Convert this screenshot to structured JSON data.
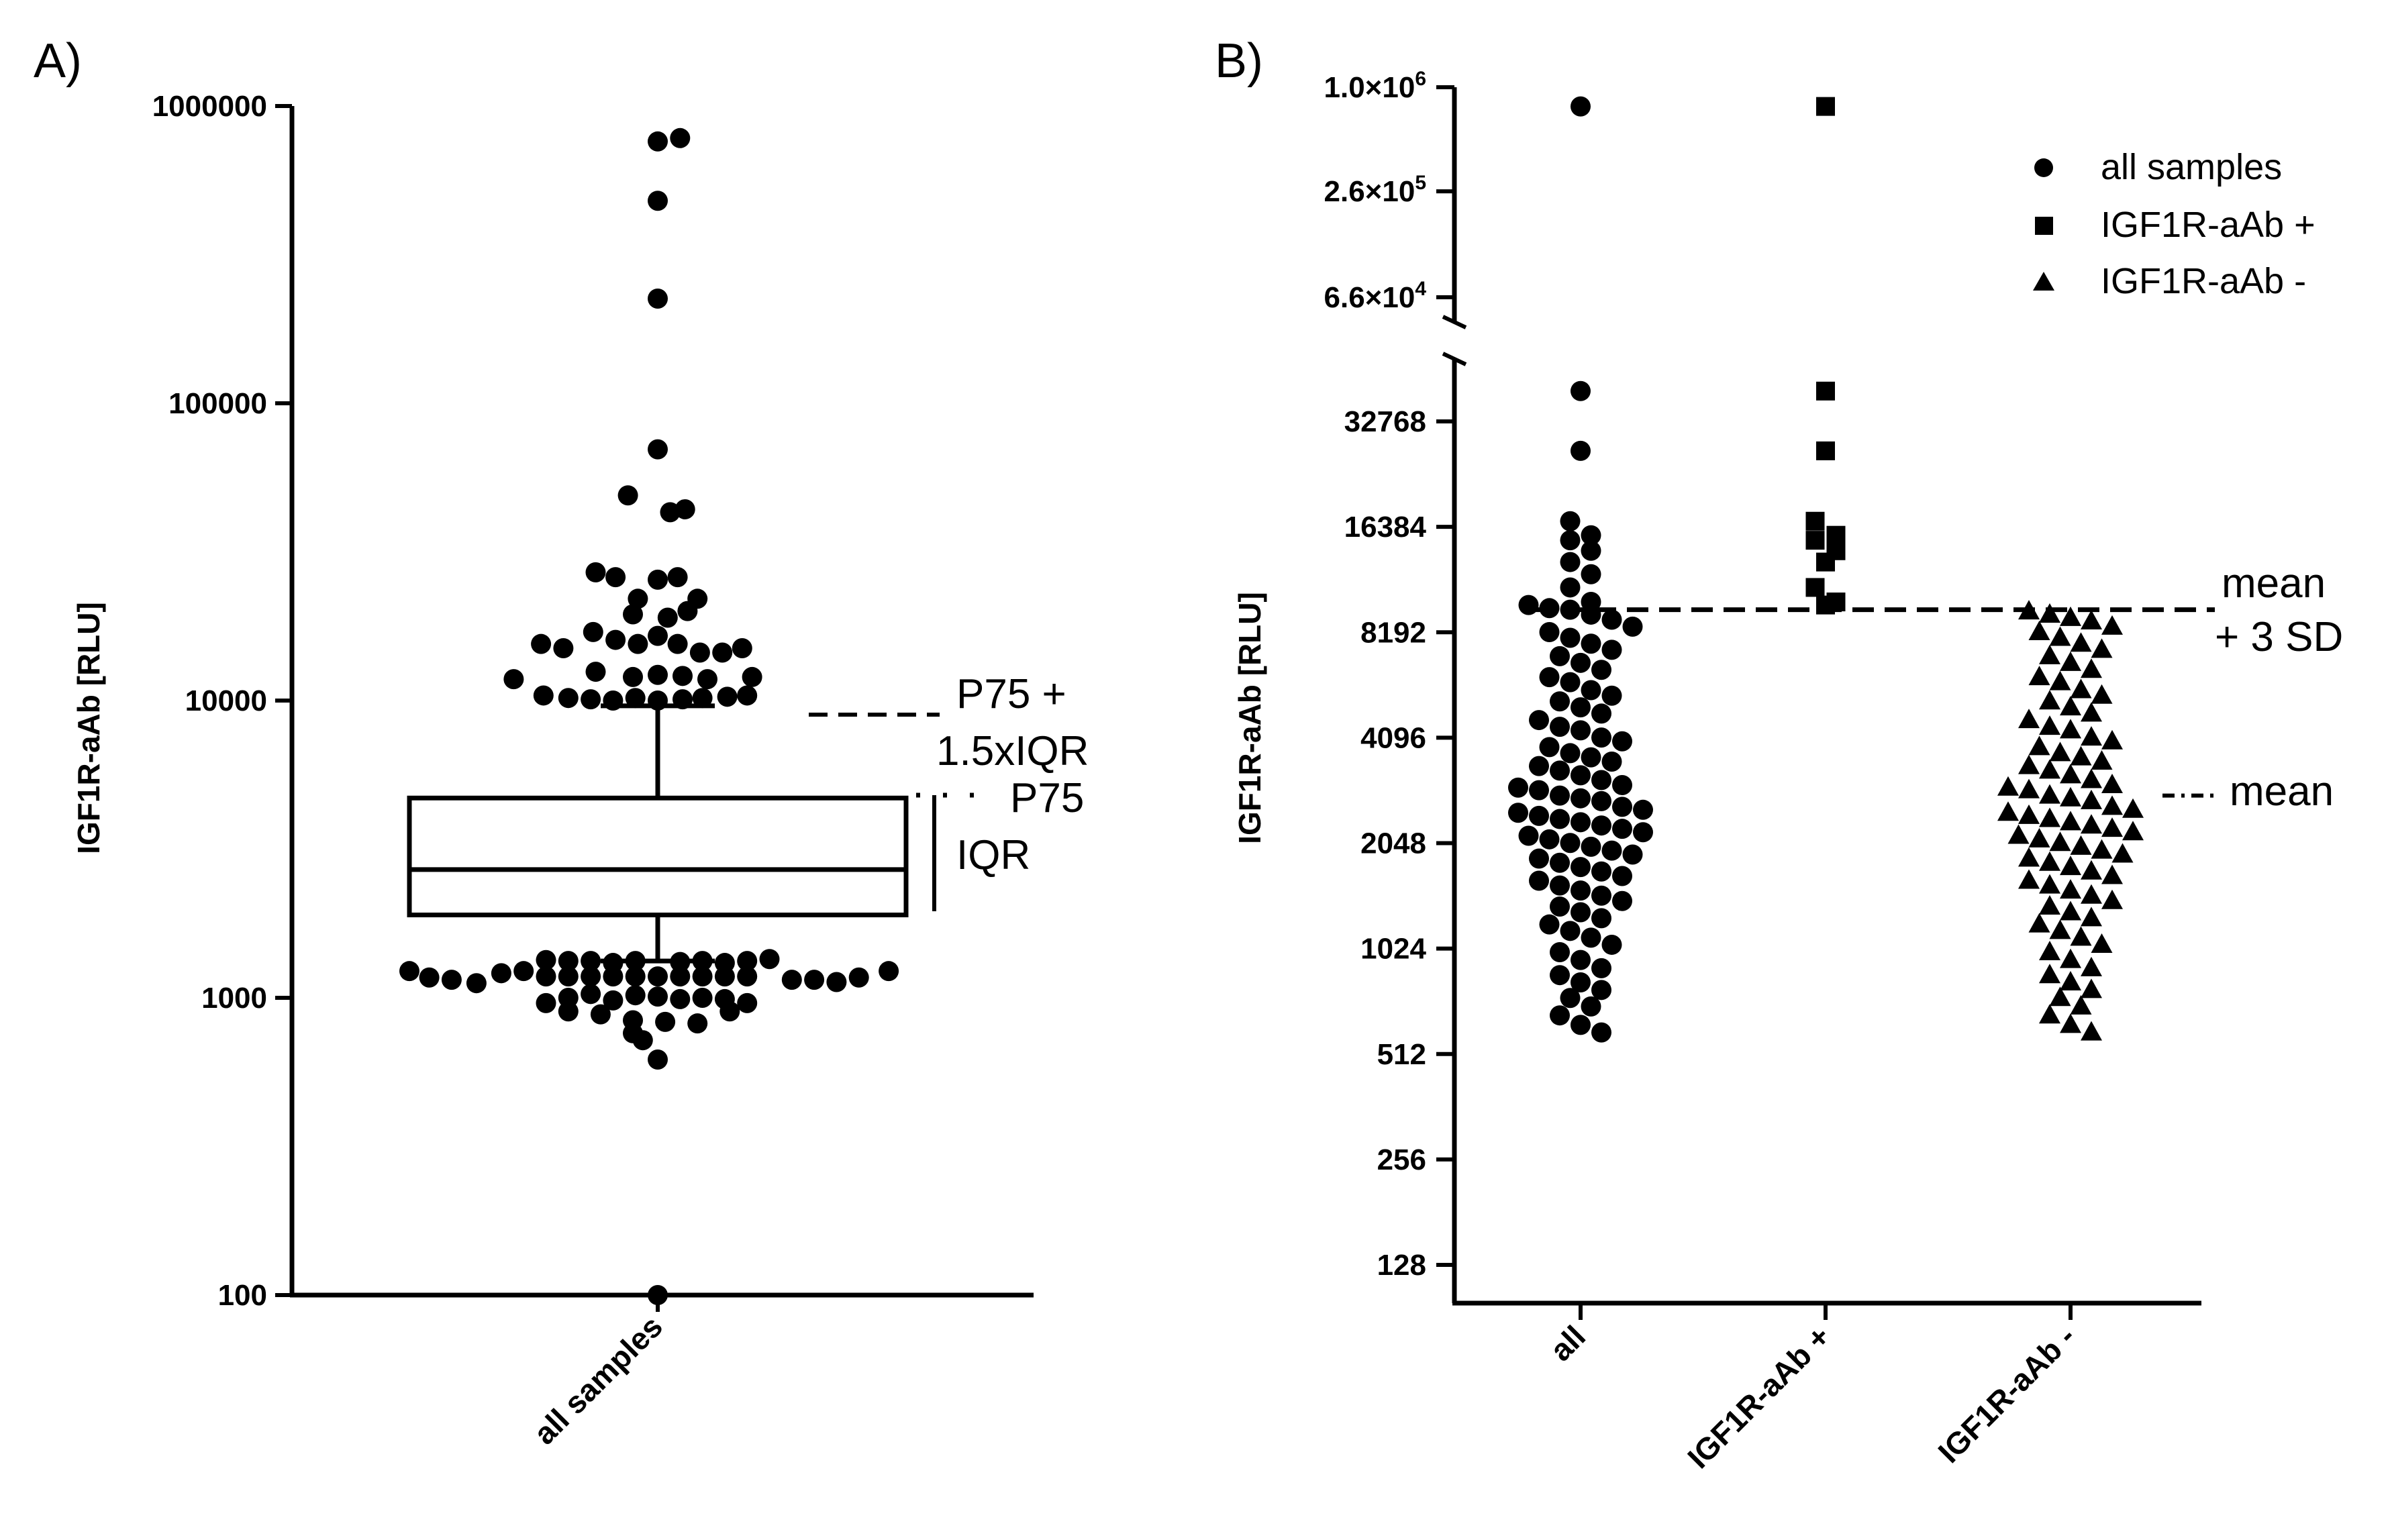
{
  "colors": {
    "ink": "#000000",
    "background": "#ffffff"
  },
  "chart_data": [
    {
      "panel_label": "A)",
      "type": "scatter",
      "subtype": "box-and-dot plot",
      "scale": "log10",
      "ylabel": "IGF1R-aAb [RLU]",
      "ylim": [
        100,
        1000000
      ],
      "yticks": [
        {
          "value": 100,
          "label": "100"
        },
        {
          "value": 1000,
          "label": "1000"
        },
        {
          "value": 10000,
          "label": "10000"
        },
        {
          "value": 100000,
          "label": "100000"
        },
        {
          "value": 1000000,
          "label": "1000000"
        }
      ],
      "categories": [
        "all samples"
      ],
      "box": {
        "q1": 1900,
        "median": 2700,
        "q3": 4700,
        "whisker_low": 1330,
        "whisker_high": 9600
      },
      "annotations": {
        "fence_line1": "P75 +",
        "fence_line2": "1.5xIQR",
        "p75": "P75",
        "iqr": "IQR"
      },
      "outliers": [
        {
          "x": 0.0,
          "y": 760000
        },
        {
          "x": 0.09,
          "y": 780000
        },
        {
          "x": 0.0,
          "y": 480000
        },
        {
          "x": 0.0,
          "y": 225000
        },
        {
          "x": 0.0,
          "y": 70000
        },
        {
          "x": -0.12,
          "y": 49000
        },
        {
          "x": 0.05,
          "y": 43000
        },
        {
          "x": 0.11,
          "y": 44000
        },
        {
          "x": -0.25,
          "y": 27000
        },
        {
          "x": -0.17,
          "y": 26000
        },
        {
          "x": -0.08,
          "y": 22000
        },
        {
          "x": 0.0,
          "y": 25500
        },
        {
          "x": 0.08,
          "y": 26000
        },
        {
          "x": 0.16,
          "y": 22000
        },
        {
          "x": -0.1,
          "y": 19500
        },
        {
          "x": 0.04,
          "y": 19000
        },
        {
          "x": 0.12,
          "y": 20000
        },
        {
          "x": -0.47,
          "y": 15500
        },
        {
          "x": -0.38,
          "y": 15000
        },
        {
          "x": -0.26,
          "y": 17000
        },
        {
          "x": -0.17,
          "y": 16000
        },
        {
          "x": -0.08,
          "y": 15500
        },
        {
          "x": 0.0,
          "y": 16500
        },
        {
          "x": 0.08,
          "y": 15500
        },
        {
          "x": 0.17,
          "y": 14500
        },
        {
          "x": 0.26,
          "y": 14500
        },
        {
          "x": 0.34,
          "y": 15000
        },
        {
          "x": -0.58,
          "y": 11800
        },
        {
          "x": -0.25,
          "y": 12500
        },
        {
          "x": -0.1,
          "y": 12000
        },
        {
          "x": 0.0,
          "y": 12200
        },
        {
          "x": 0.1,
          "y": 12100
        },
        {
          "x": 0.2,
          "y": 11800
        },
        {
          "x": 0.38,
          "y": 12000
        },
        {
          "x": -0.46,
          "y": 10400
        },
        {
          "x": -0.36,
          "y": 10200
        },
        {
          "x": -0.27,
          "y": 10100
        },
        {
          "x": -0.18,
          "y": 10000
        },
        {
          "x": -0.09,
          "y": 10200
        },
        {
          "x": 0.0,
          "y": 10000
        },
        {
          "x": 0.1,
          "y": 10100
        },
        {
          "x": 0.18,
          "y": 10200
        },
        {
          "x": 0.28,
          "y": 10300
        },
        {
          "x": 0.36,
          "y": 10400
        },
        {
          "x": -1.0,
          "y": 1230
        },
        {
          "x": -0.92,
          "y": 1170
        },
        {
          "x": -0.83,
          "y": 1150
        },
        {
          "x": -0.73,
          "y": 1120
        },
        {
          "x": -0.63,
          "y": 1210
        },
        {
          "x": -0.54,
          "y": 1230
        },
        {
          "x": -0.45,
          "y": 1340
        },
        {
          "x": -0.36,
          "y": 1330
        },
        {
          "x": -0.27,
          "y": 1330
        },
        {
          "x": -0.18,
          "y": 1310
        },
        {
          "x": -0.09,
          "y": 1330
        },
        {
          "x": 0.09,
          "y": 1320
        },
        {
          "x": 0.18,
          "y": 1330
        },
        {
          "x": 0.27,
          "y": 1310
        },
        {
          "x": 0.36,
          "y": 1330
        },
        {
          "x": 0.45,
          "y": 1350
        },
        {
          "x": 0.54,
          "y": 1150
        },
        {
          "x": 0.63,
          "y": 1150
        },
        {
          "x": 0.72,
          "y": 1130
        },
        {
          "x": 0.81,
          "y": 1170
        },
        {
          "x": 0.93,
          "y": 1230
        },
        {
          "x": -0.45,
          "y": 1180
        },
        {
          "x": -0.36,
          "y": 1180
        },
        {
          "x": -0.27,
          "y": 1180
        },
        {
          "x": -0.18,
          "y": 1180
        },
        {
          "x": -0.09,
          "y": 1180
        },
        {
          "x": 0.0,
          "y": 1180
        },
        {
          "x": 0.09,
          "y": 1180
        },
        {
          "x": 0.18,
          "y": 1180
        },
        {
          "x": 0.27,
          "y": 1180
        },
        {
          "x": 0.36,
          "y": 1180
        },
        {
          "x": -0.45,
          "y": 960
        },
        {
          "x": -0.36,
          "y": 1000
        },
        {
          "x": -0.27,
          "y": 1030
        },
        {
          "x": -0.18,
          "y": 980
        },
        {
          "x": -0.09,
          "y": 1020
        },
        {
          "x": 0.0,
          "y": 1010
        },
        {
          "x": 0.09,
          "y": 990
        },
        {
          "x": 0.18,
          "y": 1000
        },
        {
          "x": 0.27,
          "y": 990
        },
        {
          "x": 0.36,
          "y": 960
        },
        {
          "x": -0.36,
          "y": 900
        },
        {
          "x": -0.23,
          "y": 880
        },
        {
          "x": -0.1,
          "y": 840
        },
        {
          "x": 0.03,
          "y": 830
        },
        {
          "x": 0.16,
          "y": 820
        },
        {
          "x": 0.29,
          "y": 900
        },
        {
          "x": -0.1,
          "y": 760
        },
        {
          "x": -0.06,
          "y": 720
        },
        {
          "x": 0.0,
          "y": 620
        },
        {
          "x": 0.0,
          "y": 100
        }
      ]
    },
    {
      "panel_label": "B)",
      "type": "scatter",
      "subtype": "dot plot with broken log2 axis",
      "ylabel": "IGF1R-aAb [RLU]",
      "lower_axis": {
        "scale": "log2",
        "ticks": [
          {
            "value": 128,
            "label": "128"
          },
          {
            "value": 256,
            "label": "256"
          },
          {
            "value": 512,
            "label": "512"
          },
          {
            "value": 1024,
            "label": "1024"
          },
          {
            "value": 2048,
            "label": "2048"
          },
          {
            "value": 4096,
            "label": "4096"
          },
          {
            "value": 8192,
            "label": "8192"
          },
          {
            "value": 16384,
            "label": "16384"
          },
          {
            "value": 32768,
            "label": "32768"
          }
        ]
      },
      "upper_axis": {
        "scale": "log",
        "ticks": [
          {
            "value": 66000,
            "base": "6.6×10",
            "exp": "4"
          },
          {
            "value": 260000,
            "base": "2.6×10",
            "exp": "5"
          },
          {
            "value": 1000000,
            "base": "1.0×10",
            "exp": "6"
          }
        ]
      },
      "categories": [
        "all",
        "IGF1R-aAb +",
        "IGF1R-aAb -"
      ],
      "legend": [
        {
          "marker": "circle",
          "label": "all samples"
        },
        {
          "marker": "square",
          "label": "IGF1R-aAb +"
        },
        {
          "marker": "triangle",
          "label": "IGF1R-aAb -"
        }
      ],
      "cutoff": {
        "value": 9500,
        "label_line1": "mean",
        "label_line2": "+ 3 SD"
      },
      "mean": {
        "value": 2800,
        "label": "mean"
      },
      "series": [
        {
          "name": "all samples",
          "marker": "circle",
          "category": "all",
          "upper_values": [
            780000
          ],
          "values": [
            40000,
            27000,
            17000,
            15500,
            15000,
            14000,
            13000,
            12000,
            11000,
            10000,
            9800,
            9600,
            9500,
            9200,
            8900,
            8500,
            8200,
            7900,
            7600,
            7300,
            7000,
            6700,
            6400,
            6100,
            5900,
            5600,
            5400,
            5200,
            5000,
            4800,
            4600,
            4400,
            4300,
            4100,
            4000,
            3850,
            3700,
            3600,
            3500,
            3400,
            3300,
            3200,
            3100,
            3000,
            2950,
            2900,
            2800,
            2750,
            2700,
            2600,
            2550,
            2500,
            2450,
            2400,
            2350,
            2300,
            2250,
            2200,
            2150,
            2100,
            2050,
            2000,
            1950,
            1900,
            1850,
            1800,
            1750,
            1700,
            1650,
            1600,
            1550,
            1500,
            1450,
            1400,
            1350,
            1300,
            1250,
            1200,
            1150,
            1100,
            1050,
            1000,
            950,
            900,
            860,
            820,
            780,
            740,
            700,
            660,
            620,
            590
          ]
        },
        {
          "name": "IGF1R-aAb +",
          "marker": "square",
          "category": "IGF1R-aAb +",
          "upper_values": [
            780000
          ],
          "values": [
            40000,
            27000,
            17000,
            15500,
            15000,
            14000,
            13000,
            11000,
            10000,
            9800
          ]
        },
        {
          "name": "IGF1R-aAb -",
          "marker": "triangle",
          "category": "IGF1R-aAb -",
          "values": [
            9400,
            9200,
            9000,
            8800,
            8500,
            8200,
            7900,
            7600,
            7300,
            7000,
            6700,
            6400,
            6100,
            5900,
            5600,
            5400,
            5200,
            5000,
            4800,
            4600,
            4400,
            4300,
            4100,
            4000,
            3850,
            3700,
            3600,
            3500,
            3400,
            3300,
            3200,
            3100,
            3000,
            2950,
            2900,
            2800,
            2750,
            2700,
            2600,
            2550,
            2500,
            2450,
            2400,
            2350,
            2300,
            2250,
            2200,
            2150,
            2100,
            2050,
            2000,
            1950,
            1900,
            1850,
            1800,
            1750,
            1700,
            1650,
            1600,
            1550,
            1500,
            1450,
            1400,
            1350,
            1300,
            1250,
            1200,
            1150,
            1100,
            1050,
            1000,
            950,
            900,
            860,
            820,
            780,
            740,
            700,
            660,
            620,
            590
          ]
        }
      ]
    }
  ]
}
